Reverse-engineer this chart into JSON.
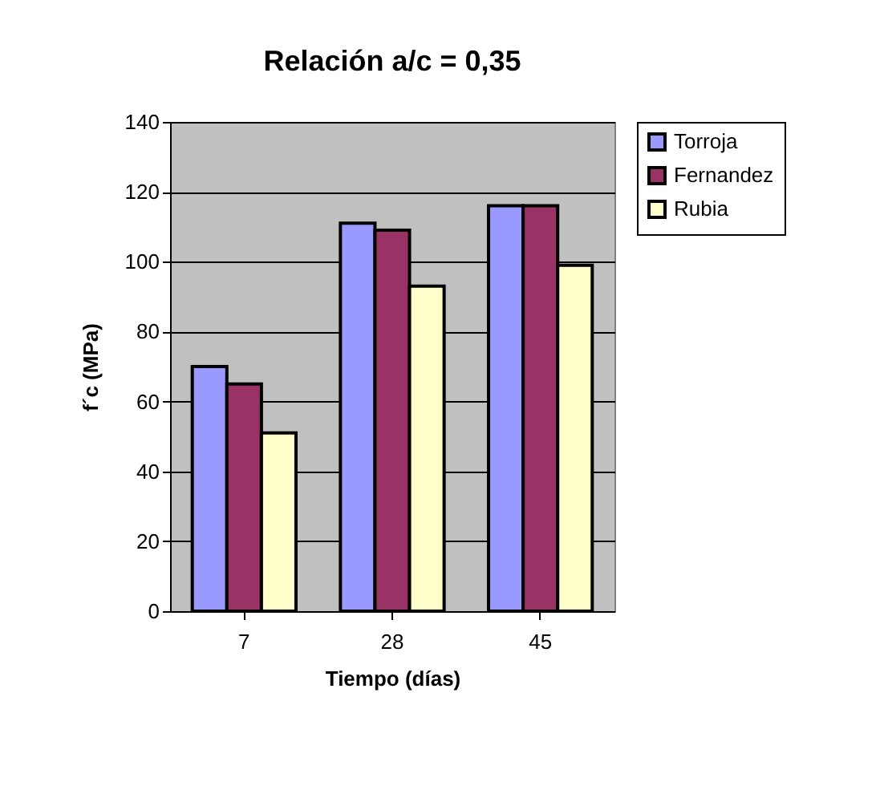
{
  "chart_data": {
    "type": "bar",
    "title": "Relación a/c = 0,35",
    "xlabel": "Tiempo (días)",
    "ylabel": "f´c (MPa)",
    "categories": [
      "7",
      "28",
      "45"
    ],
    "series": [
      {
        "name": "Torroja",
        "color": "#9999ff",
        "values": [
          70,
          111,
          116
        ]
      },
      {
        "name": "Fernandez",
        "color": "#993366",
        "values": [
          65,
          109,
          116
        ]
      },
      {
        "name": "Rubia",
        "color": "#ffffcc",
        "values": [
          51,
          93,
          99
        ]
      }
    ],
    "ylim": [
      0,
      140
    ],
    "yticks": [
      0,
      20,
      40,
      60,
      80,
      100,
      120,
      140
    ],
    "grid": "y",
    "legend": "right"
  }
}
